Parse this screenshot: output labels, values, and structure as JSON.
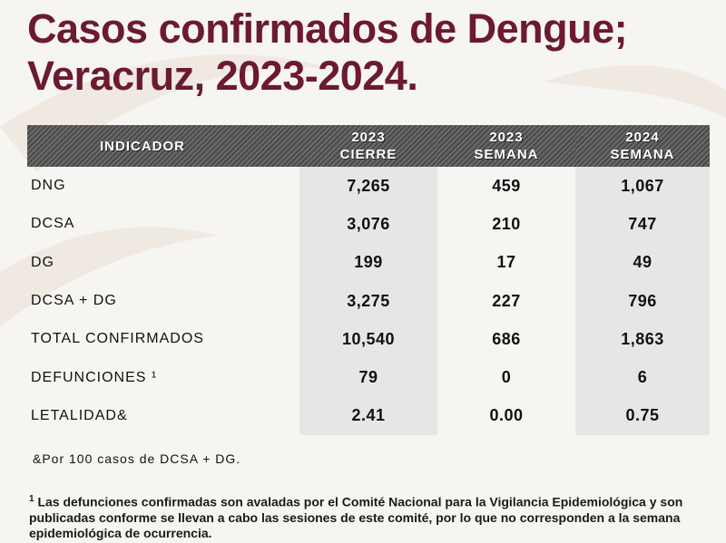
{
  "title": {
    "line1": "Casos confirmados de Dengue;",
    "line2": "Veracruz, 2023-2024."
  },
  "table": {
    "headers": [
      {
        "l1": "INDICADOR",
        "l2": ""
      },
      {
        "l1": "2023",
        "l2": "CIERRE"
      },
      {
        "l1": "2023",
        "l2": "SEMANA"
      },
      {
        "l1": "2024",
        "l2": "SEMANA"
      }
    ],
    "rows": [
      {
        "indicator": "DNG",
        "c2023_cierre": "7,265",
        "c2023_semana": "459",
        "c2024_semana": "1,067"
      },
      {
        "indicator": "DCSA",
        "c2023_cierre": "3,076",
        "c2023_semana": "210",
        "c2024_semana": "747"
      },
      {
        "indicator": "DG",
        "c2023_cierre": "199",
        "c2023_semana": "17",
        "c2024_semana": "49"
      },
      {
        "indicator": "DCSA + DG",
        "c2023_cierre": "3,275",
        "c2023_semana": "227",
        "c2024_semana": "796"
      },
      {
        "indicator": "TOTAL CONFIRMADOS",
        "c2023_cierre": "10,540",
        "c2023_semana": "686",
        "c2024_semana": "1,863"
      },
      {
        "indicator": "DEFUNCIONES ¹",
        "c2023_cierre": "79",
        "c2023_semana": "0",
        "c2024_semana": "6"
      },
      {
        "indicator": "LETALIDAD&",
        "c2023_cierre": "2.41",
        "c2023_semana": "0.00",
        "c2024_semana": "0.75"
      }
    ]
  },
  "notes": {
    "letalidad": "&Por 100 casos de DCSA + DG.",
    "footnote_mark": "1",
    "footnote": " Las defunciones confirmadas son avaladas por el Comité Nacional para la Vigilancia Epidemiológica y son publicadas conforme se llevan a cabo las sesiones de este comité, por lo que no corresponden a la semana epidemiológica de ocurrencia."
  },
  "colors": {
    "title": "#6b1a32",
    "header_bg": "#555555",
    "shade": "#e6e6e6"
  }
}
